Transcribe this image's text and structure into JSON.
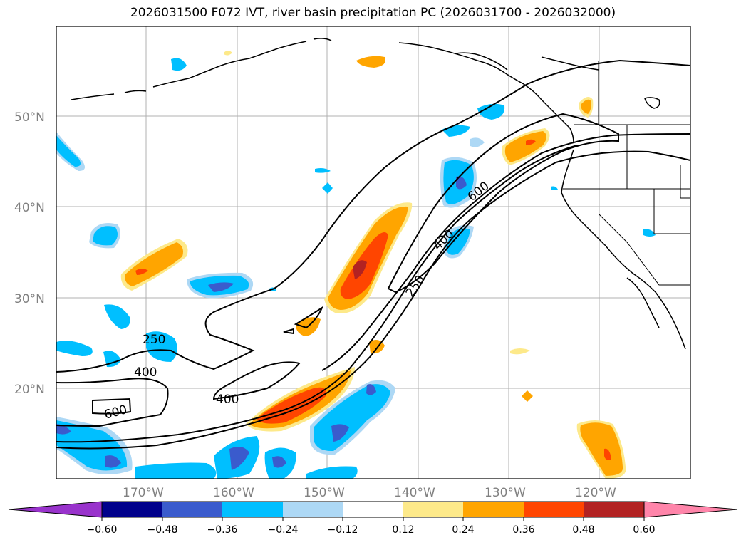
{
  "title": "2026031500 F072 IVT, river basin precipitation PC (2026031700 - 2026032000)",
  "map": {
    "lat_labels": [
      "50°N",
      "40°N",
      "30°N",
      "20°N"
    ],
    "lon_labels": [
      "170°W",
      "160°W",
      "150°W",
      "140°W",
      "130°W",
      "120°W"
    ],
    "contour_labels": [
      "250",
      "400",
      "600",
      "400",
      "250",
      "600",
      "400"
    ],
    "coastline_color": "#000000",
    "gridline_color": "#b0b0b0"
  },
  "colorbar": {
    "tick_labels": [
      "−0.60",
      "−0.48",
      "−0.36",
      "−0.24",
      "−0.12",
      "0.12",
      "0.24",
      "0.36",
      "0.48",
      "0.60"
    ],
    "colors": [
      "#9933cc",
      "#00008b",
      "#3a5bcd",
      "#00bfff",
      "#add8f5",
      "#ffffff",
      "#fde98a",
      "#ffa500",
      "#ff4500",
      "#b22222",
      "#ff85aa"
    ]
  }
}
